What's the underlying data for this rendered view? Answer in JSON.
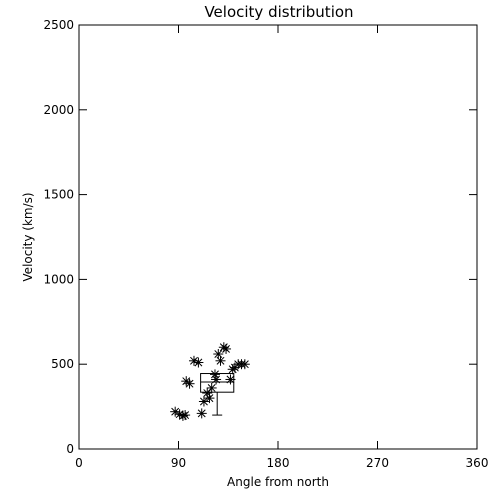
{
  "chart_data": {
    "type": "scatter",
    "title": "Velocity distribution",
    "xlabel": "Angle from north",
    "ylabel": "Velocity (km/s)",
    "xlim": [
      0,
      360
    ],
    "ylim": [
      0,
      2500
    ],
    "xticks": [
      0,
      90,
      180,
      270,
      360
    ],
    "yticks": [
      0,
      500,
      1000,
      1500,
      2000,
      2500
    ],
    "marker": "asterisk",
    "points": [
      {
        "x": 87,
        "y": 220
      },
      {
        "x": 91,
        "y": 205
      },
      {
        "x": 94,
        "y": 195
      },
      {
        "x": 96,
        "y": 200
      },
      {
        "x": 97,
        "y": 400
      },
      {
        "x": 100,
        "y": 385
      },
      {
        "x": 104,
        "y": 520
      },
      {
        "x": 108,
        "y": 510
      },
      {
        "x": 111,
        "y": 210
      },
      {
        "x": 113,
        "y": 280
      },
      {
        "x": 116,
        "y": 330
      },
      {
        "x": 118,
        "y": 300
      },
      {
        "x": 120,
        "y": 360
      },
      {
        "x": 123,
        "y": 440
      },
      {
        "x": 124,
        "y": 410
      },
      {
        "x": 126,
        "y": 560
      },
      {
        "x": 128,
        "y": 520
      },
      {
        "x": 131,
        "y": 600
      },
      {
        "x": 133,
        "y": 590
      },
      {
        "x": 137,
        "y": 410
      },
      {
        "x": 139,
        "y": 470
      },
      {
        "x": 141,
        "y": 480
      },
      {
        "x": 144,
        "y": 500
      },
      {
        "x": 147,
        "y": 500
      },
      {
        "x": 150,
        "y": 500
      }
    ],
    "boxplot": {
      "x_left": 110,
      "x_right": 140,
      "whisker_x": 125,
      "q1": 335,
      "median": 395,
      "q3": 445,
      "whisker_low": 200,
      "whisker_high": 445
    }
  }
}
